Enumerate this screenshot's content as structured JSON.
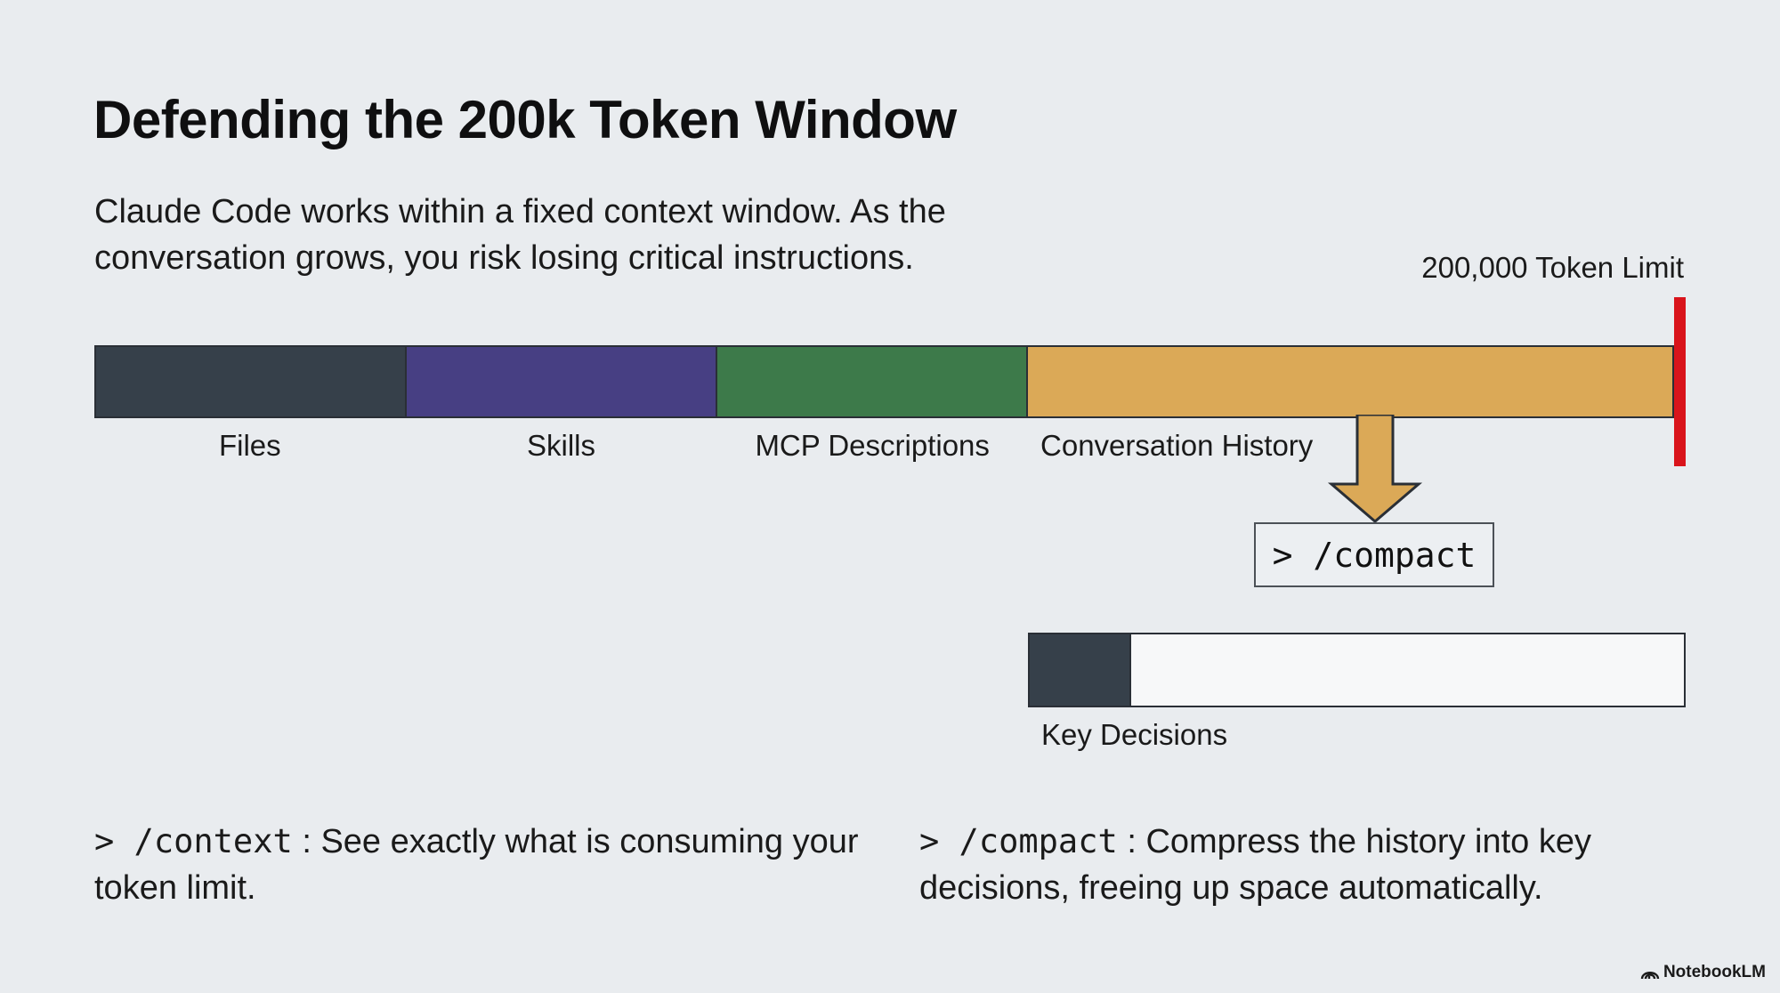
{
  "title": "Defending the 200k Token Window",
  "subtitle": "Claude Code works within a fixed context window. As the conversation grows, you risk losing critical instructions.",
  "limit_label": "200,000 Token Limit",
  "context_bar": {
    "segments": [
      {
        "label": "Files",
        "color": "#36404a",
        "fraction": 0.197
      },
      {
        "label": "Skills",
        "color": "#473f83",
        "fraction": 0.197
      },
      {
        "label": "MCP Descriptions",
        "color": "#3d7a4a",
        "fraction": 0.197
      },
      {
        "label": "Conversation History",
        "color": "#dba957",
        "fraction": 0.409
      }
    ]
  },
  "compact_box": {
    "text": "> /compact"
  },
  "compacted_bar": {
    "label": "Key Decisions",
    "fill_fraction": 0.155,
    "fill_color": "#36404a"
  },
  "notes": [
    {
      "command": "> /context",
      "separator": " : ",
      "text": "See exactly what is consuming your token limit."
    },
    {
      "command": "> /compact",
      "separator": " : ",
      "text": "Compress the history into key decisions, freeing up space automatically."
    }
  ],
  "brand": "NotebookLM",
  "colors": {
    "limit_line": "#d9141b",
    "arrow": "#dba957"
  }
}
